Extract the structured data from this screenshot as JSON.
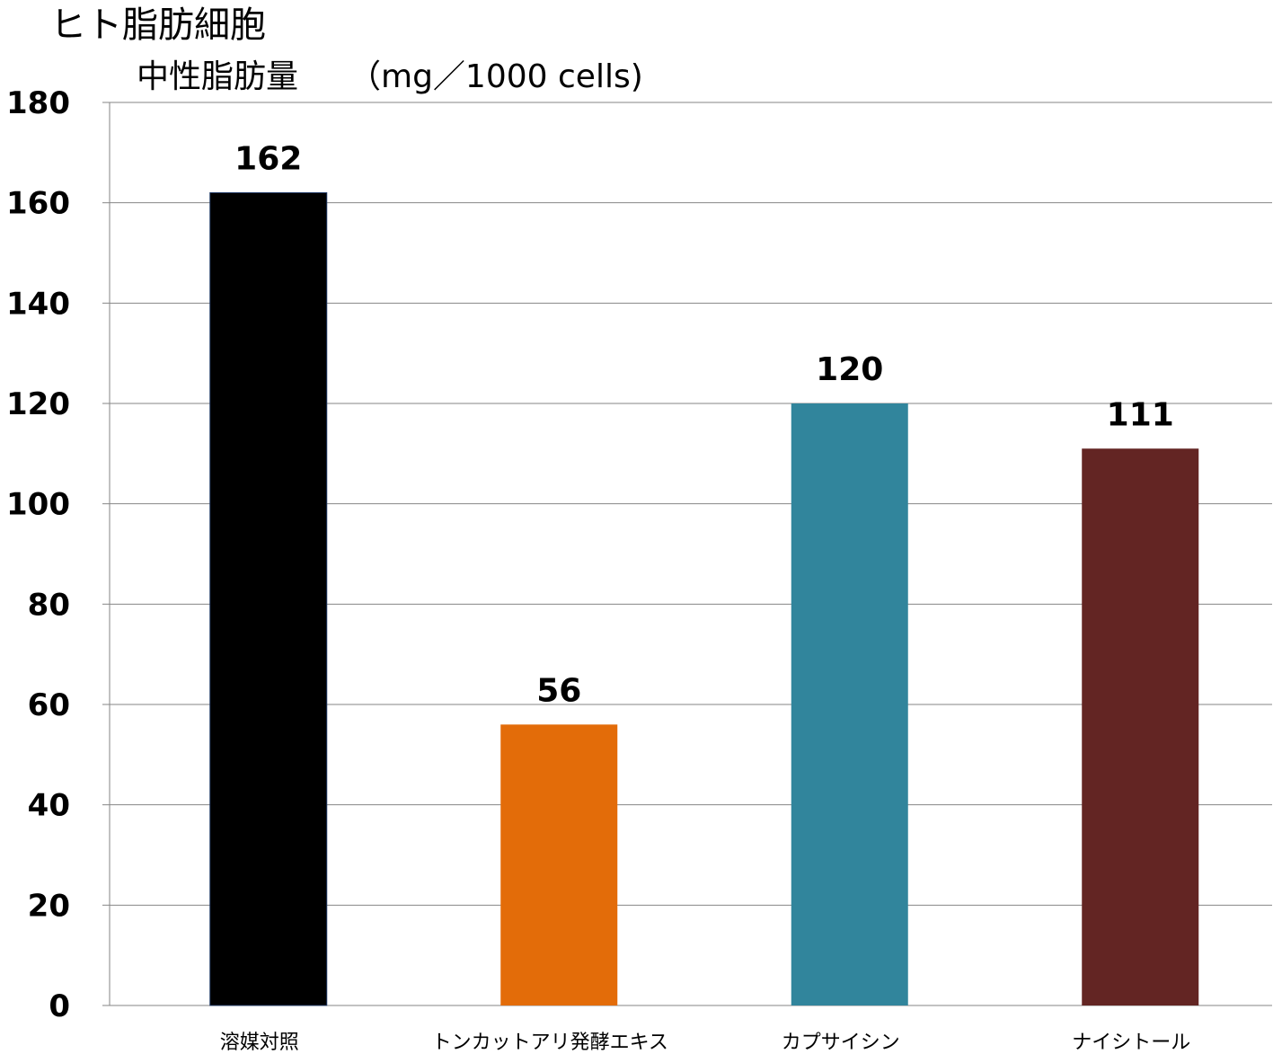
{
  "chart_data": {
    "type": "bar",
    "title": "ヒト脂肪細胞",
    "ylabel": "中性脂肪量",
    "yunit": "（mg／1000 cells)",
    "xlabel": "",
    "categories": [
      "溶媒対照",
      "トンカットアリ発酵エキス",
      "カプサイシン",
      "ナイシトール"
    ],
    "values": [
      162,
      56,
      120,
      111
    ],
    "colors": [
      "#000000",
      "#E36C09",
      "#31859C",
      "#632523"
    ],
    "ylim": [
      0,
      180
    ],
    "yticks": [
      0,
      20,
      40,
      60,
      80,
      100,
      120,
      140,
      160,
      180
    ],
    "grid": true,
    "legend": "none"
  }
}
